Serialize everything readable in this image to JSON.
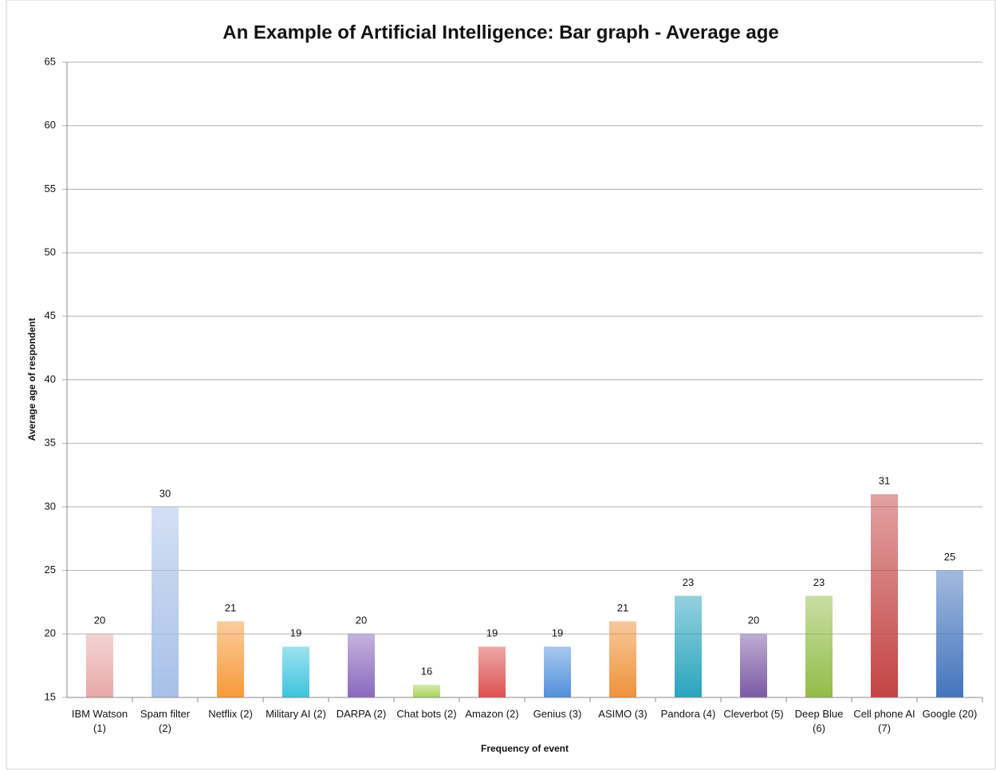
{
  "chart_data": {
    "type": "bar",
    "title": "An Example of Artificial Intelligence: Bar graph - Average age",
    "x_label": "Frequency of event",
    "y_label": "Average age of respondent",
    "categories": [
      "IBM Watson (1)",
      "Spam filter (2)",
      "Netflix (2)",
      "Military AI (2)",
      "DARPA (2)",
      "Chat bots (2)",
      "Amazon (2)",
      "Genius (3)",
      "ASIMO (3)",
      "Pandora (4)",
      "Cleverbot (5)",
      "Deep Blue (6)",
      "Cell phone AI (7)",
      "Google (20)"
    ],
    "values": [
      20,
      30,
      21,
      19,
      20,
      16,
      19,
      19,
      21,
      23,
      20,
      23,
      31,
      25
    ],
    "colors": [
      "#e8a8a8",
      "#a8c0e8",
      "#f79a3a",
      "#3cc4de",
      "#8a68bc",
      "#a8d458",
      "#dc5050",
      "#5090dc",
      "#ee923a",
      "#2aa4bc",
      "#7a5aa4",
      "#92bc48",
      "#c44444",
      "#4474bc"
    ],
    "ylim": [
      15,
      65
    ],
    "yticks": [
      15,
      20,
      25,
      30,
      35,
      40,
      45,
      50,
      55,
      60,
      65
    ],
    "grid": true
  }
}
